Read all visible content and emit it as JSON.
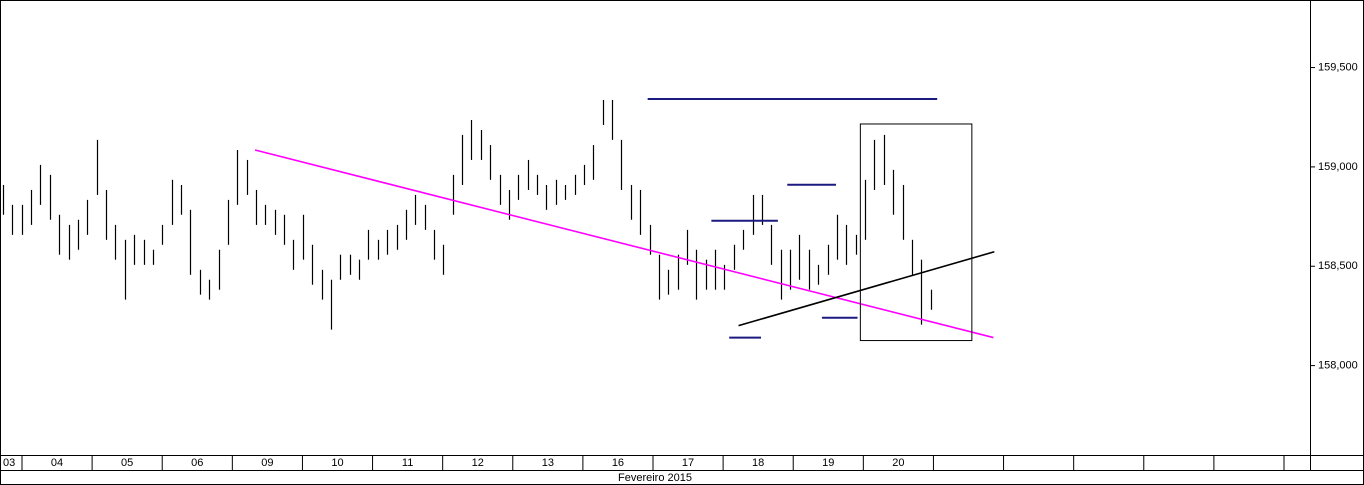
{
  "chart_data": {
    "type": "ohlc",
    "x_title": "Fevereiro 2015",
    "categories": [
      "03",
      "04",
      "05",
      "06",
      "09",
      "10",
      "11",
      "12",
      "13",
      "16",
      "17",
      "18",
      "19",
      "20",
      null,
      null,
      null,
      null,
      null,
      null
    ],
    "high": [
      158909,
      158809,
      158809,
      158884,
      159010,
      158960,
      158759,
      158708,
      158734,
      158834,
      159136,
      158884,
      158708,
      158633,
      158658,
      158633,
      158583,
      158708,
      158935,
      158909,
      158784,
      158482,
      158432,
      158583,
      158834,
      159085,
      159035,
      158884,
      158809,
      158784,
      158759,
      158633,
      158759,
      158608,
      158482,
      158432,
      158558,
      158558,
      158533,
      158683,
      158633,
      158683,
      158708,
      158784,
      158859,
      158809,
      158683,
      158608,
      158960,
      159161,
      159236,
      159186,
      159110,
      158960,
      158884,
      158960,
      159035,
      158960,
      158909,
      158935,
      158909,
      158960,
      159010,
      159110,
      159337,
      159337,
      159136,
      158909,
      158884,
      158708,
      158558,
      158482,
      158558,
      158683,
      158583,
      158533,
      158583,
      158507,
      158608,
      158683,
      158859,
      158859,
      158708,
      158583,
      158583,
      158658,
      158583,
      158507,
      158608,
      158759,
      158708,
      158658,
      158935,
      159136,
      159161,
      158985,
      158909,
      158633,
      158533,
      158382
    ],
    "low": [
      158759,
      158658,
      158658,
      158708,
      158809,
      158734,
      158558,
      158533,
      158583,
      158658,
      158859,
      158633,
      158533,
      158332,
      158507,
      158507,
      158507,
      158608,
      158708,
      158759,
      158457,
      158357,
      158332,
      158382,
      158608,
      158809,
      158859,
      158708,
      158708,
      158658,
      158608,
      158482,
      158533,
      158407,
      158332,
      158181,
      158432,
      158457,
      158432,
      158533,
      158533,
      158558,
      158583,
      158633,
      158708,
      158683,
      158533,
      158457,
      158759,
      158909,
      159035,
      159035,
      158935,
      158809,
      158734,
      158834,
      158884,
      158859,
      158784,
      158809,
      158834,
      158859,
      158909,
      158935,
      159211,
      159136,
      158884,
      158734,
      158658,
      158558,
      158332,
      158357,
      158382,
      158507,
      158332,
      158382,
      158382,
      158382,
      158482,
      158583,
      158658,
      158708,
      158507,
      158332,
      158382,
      158432,
      158382,
      158407,
      158457,
      158533,
      158507,
      158558,
      158633,
      158884,
      158909,
      158759,
      158633,
      158457,
      158206,
      158281
    ],
    "color": "#000000",
    "trendlines": [
      {
        "color": "#ff00ff",
        "x": [
          26.9,
          105.7
        ],
        "y": [
          159085,
          158141
        ]
      },
      {
        "color": "#000000",
        "x": [
          78.5,
          105.8
        ],
        "y": [
          158201,
          158573
        ]
      }
    ],
    "levels": [
      {
        "color": "#1a1a80",
        "x": [
          68.8,
          99.7
        ],
        "y": 159342
      },
      {
        "color": "#1a1a80",
        "x": [
          75.6,
          82.7
        ],
        "y": 158729
      },
      {
        "color": "#1a1a80",
        "x": [
          83.7,
          88.9
        ],
        "y": 158910
      },
      {
        "color": "#1a1a80",
        "x": [
          77.5,
          80.9
        ],
        "y": 158141
      },
      {
        "color": "#1a1a80",
        "x": [
          87.4,
          91.2
        ],
        "y": 158241
      }
    ],
    "rectangle": {
      "color": "#000000",
      "x": [
        91.5,
        103.4
      ],
      "y": [
        158126,
        159216
      ]
    },
    "ylim": [
      157550,
      159840
    ],
    "yticks": [
      {
        "value": 158000,
        "label": "158,000"
      },
      {
        "value": 158500,
        "label": "158,500"
      },
      {
        "value": 159000,
        "label": "159,000"
      },
      {
        "value": 159500,
        "label": "159,500"
      }
    ]
  }
}
